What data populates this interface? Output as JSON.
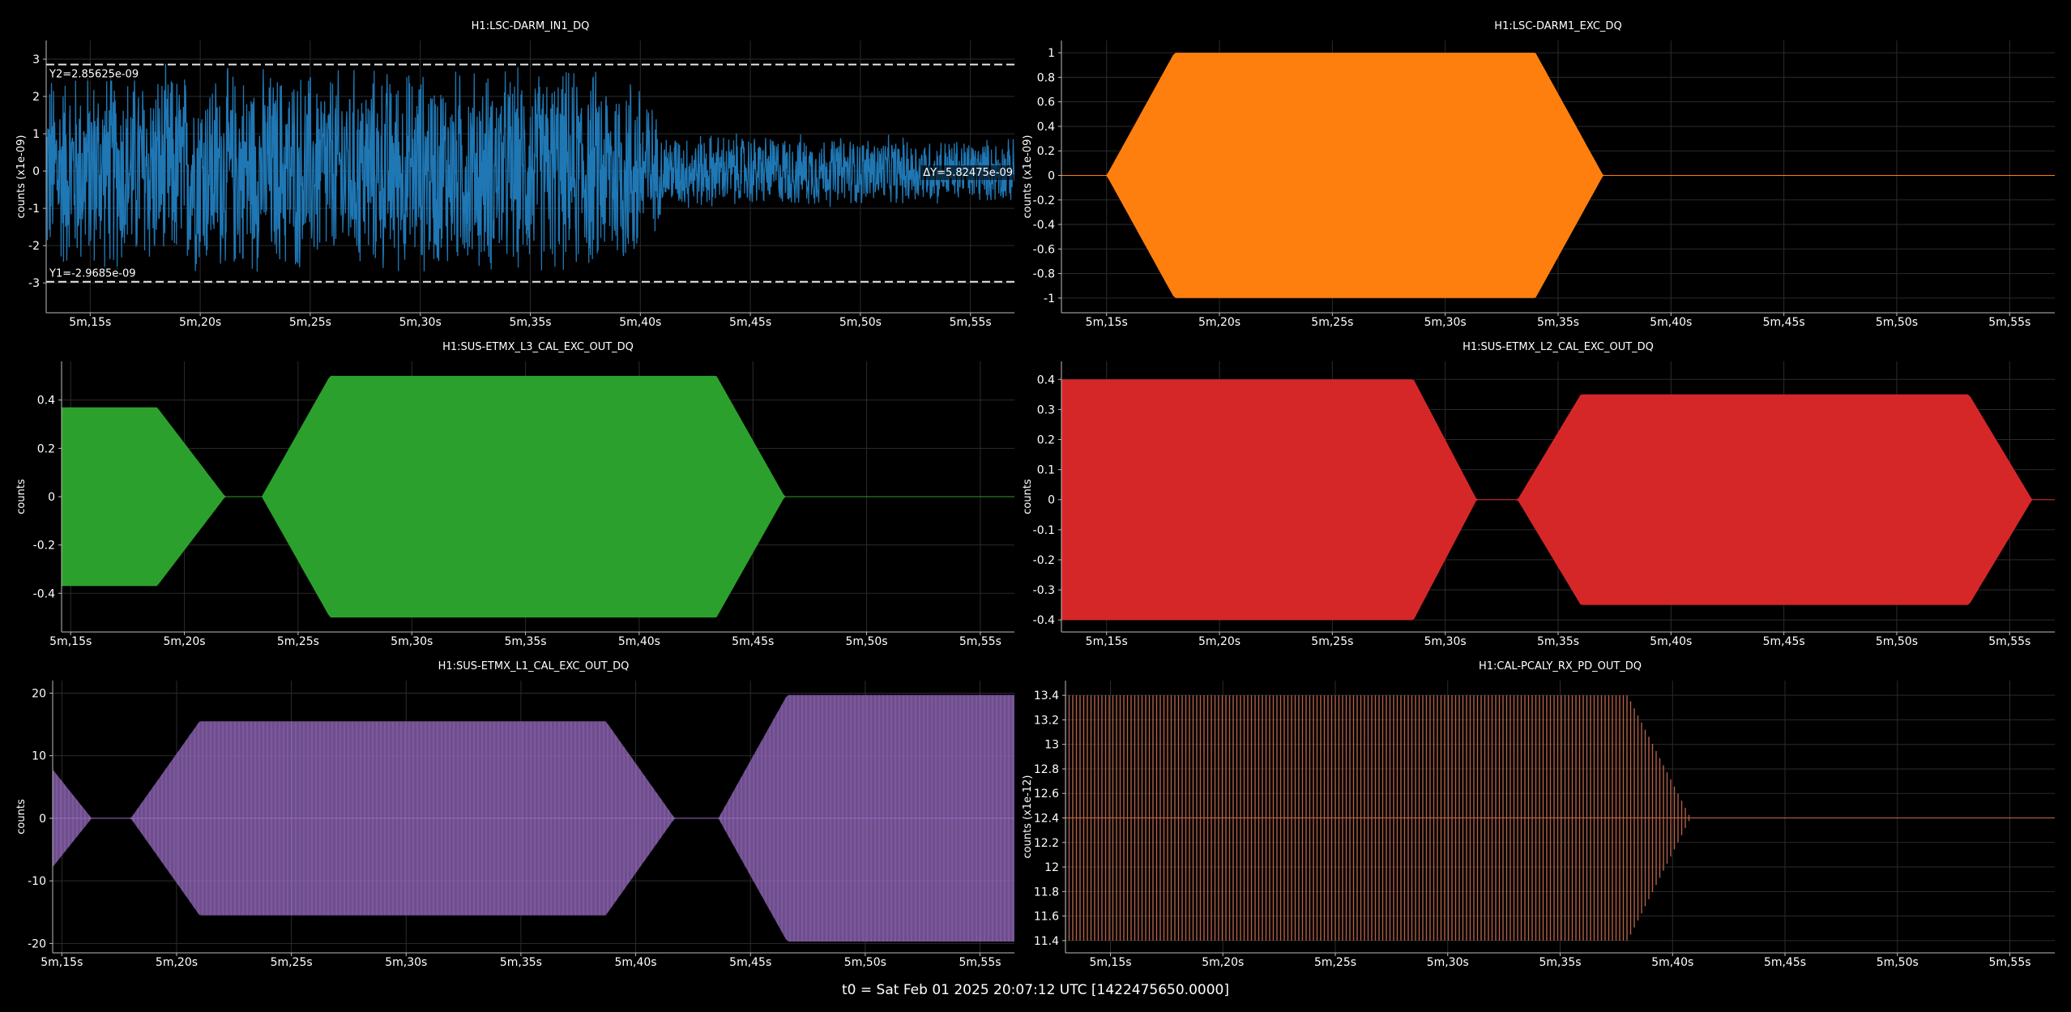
{
  "footer": "t0 = Sat Feb 01 2025 20:07:12 UTC [1422475650.0000]",
  "chart_data": [
    {
      "type": "line",
      "title": "H1:LSC-DARM_IN1_DQ",
      "ylabel": "counts (x1e-09)",
      "color": "#1f77b4",
      "xlim": [
        313,
        357
      ],
      "ylim": [
        -3.8,
        3.5
      ],
      "xticks": [
        315,
        320,
        325,
        330,
        335,
        340,
        345,
        350,
        355
      ],
      "xtick_labels": [
        "5m,15s",
        "5m,20s",
        "5m,25s",
        "5m,30s",
        "5m,35s",
        "5m,40s",
        "5m,45s",
        "5m,50s",
        "5m,55s"
      ],
      "yticks": [
        -3,
        -2,
        -1,
        0,
        1,
        2,
        3
      ],
      "ytick_labels": [
        "-3",
        "-2",
        "-1",
        "0",
        "1",
        "2",
        "3"
      ],
      "envelope": [
        [
          313,
          2.6
        ],
        [
          340,
          2.6
        ],
        [
          341,
          1.0
        ],
        [
          357,
          0.8
        ]
      ],
      "cursors": [
        {
          "value": 2.85625,
          "label": "Y2=2.85625e-09"
        },
        {
          "value": -2.9685,
          "label": "Y1=-2.9685e-09"
        }
      ],
      "delta_label": "ΔY=5.82475e-09"
    },
    {
      "type": "area",
      "title": "H1:LSC-DARM1_EXC_DQ",
      "ylabel": "counts (x1e-09)",
      "color": "#ff7f0e",
      "xlim": [
        313,
        357
      ],
      "ylim": [
        -1.12,
        1.1
      ],
      "xticks": [
        315,
        320,
        325,
        330,
        335,
        340,
        345,
        350,
        355
      ],
      "xtick_labels": [
        "5m,15s",
        "5m,20s",
        "5m,25s",
        "5m,30s",
        "5m,35s",
        "5m,40s",
        "5m,45s",
        "5m,50s",
        "5m,55s"
      ],
      "yticks": [
        -1,
        -0.8,
        -0.6,
        -0.4,
        -0.2,
        0,
        0.2,
        0.4,
        0.6,
        0.8,
        1
      ],
      "ytick_labels": [
        "-1",
        "-0.8",
        "-0.6",
        "-0.4",
        "-0.2",
        "0",
        "0.2",
        "0.4",
        "0.6",
        "0.8",
        "1"
      ],
      "envelope": [
        [
          313,
          0
        ],
        [
          315,
          0
        ],
        [
          318,
          1
        ],
        [
          334,
          1
        ],
        [
          337,
          0
        ],
        [
          357,
          0
        ]
      ]
    },
    {
      "type": "area",
      "title": "H1:SUS-ETMX_L3_CAL_EXC_OUT_DQ",
      "ylabel": "counts",
      "color": "#2ca02c",
      "xlim": [
        314.6,
        356.5
      ],
      "ylim": [
        -0.56,
        0.56
      ],
      "xticks": [
        315,
        320,
        325,
        330,
        335,
        340,
        345,
        350,
        355
      ],
      "xtick_labels": [
        "5m,15s",
        "5m,20s",
        "5m,25s",
        "5m,30s",
        "5m,35s",
        "5m,40s",
        "5m,45s",
        "5m,50s",
        "5m,55s"
      ],
      "yticks": [
        -0.4,
        -0.2,
        0,
        0.2,
        0.4
      ],
      "ytick_labels": [
        "-0.4",
        "-0.2",
        "0",
        "0.2",
        "0.4"
      ],
      "envelope": [
        [
          314.6,
          0.37
        ],
        [
          318.8,
          0.37
        ],
        [
          321.8,
          0
        ],
        [
          323.4,
          0
        ],
        [
          326.4,
          0.5
        ],
        [
          343.4,
          0.5
        ],
        [
          346.4,
          0
        ],
        [
          356.5,
          0
        ]
      ]
    },
    {
      "type": "area",
      "title": "H1:SUS-ETMX_L2_CAL_EXC_OUT_DQ",
      "ylabel": "counts",
      "color": "#d62728",
      "xlim": [
        313,
        357
      ],
      "ylim": [
        -0.44,
        0.46
      ],
      "xticks": [
        315,
        320,
        325,
        330,
        335,
        340,
        345,
        350,
        355
      ],
      "xtick_labels": [
        "5m,15s",
        "5m,20s",
        "5m,25s",
        "5m,30s",
        "5m,35s",
        "5m,40s",
        "5m,45s",
        "5m,50s",
        "5m,55s"
      ],
      "yticks": [
        -0.4,
        -0.3,
        -0.2,
        -0.1,
        0,
        0.1,
        0.2,
        0.3,
        0.4
      ],
      "ytick_labels": [
        "-0.4",
        "-0.3",
        "-0.2",
        "-0.1",
        "0",
        "0.1",
        "0.2",
        "0.3",
        "0.4"
      ],
      "envelope": [
        [
          313,
          0.4
        ],
        [
          328.6,
          0.4
        ],
        [
          331.4,
          0
        ],
        [
          333.2,
          0
        ],
        [
          336.0,
          0.35
        ],
        [
          353.2,
          0.35
        ],
        [
          356.0,
          0
        ],
        [
          357,
          0
        ]
      ]
    },
    {
      "type": "area",
      "title": "H1:SUS-ETMX_L1_CAL_EXC_OUT_DQ",
      "ylabel": "counts",
      "color": "#9467bd",
      "xlim": [
        314.6,
        356.5
      ],
      "ylim": [
        -21.5,
        22
      ],
      "xticks": [
        315,
        320,
        325,
        330,
        335,
        340,
        345,
        350,
        355
      ],
      "xtick_labels": [
        "5m,15s",
        "5m,20s",
        "5m,25s",
        "5m,30s",
        "5m,35s",
        "5m,40s",
        "5m,45s",
        "5m,50s",
        "5m,55s"
      ],
      "yticks": [
        -20,
        -10,
        0,
        10,
        20
      ],
      "ytick_labels": [
        "-20",
        "-10",
        "0",
        "10",
        "20"
      ],
      "envelope": [
        [
          314.6,
          7.8
        ],
        [
          316.3,
          0
        ],
        [
          318.0,
          0
        ],
        [
          321.0,
          15.5
        ],
        [
          338.7,
          15.5
        ],
        [
          341.7,
          0
        ],
        [
          343.6,
          0
        ],
        [
          346.6,
          19.7
        ],
        [
          356.5,
          19.7
        ]
      ]
    },
    {
      "type": "area",
      "title": "H1:CAL-PCALY_RX_PD_OUT_DQ",
      "ylabel": "counts (x1e-12)",
      "color": "#c46a4e",
      "xlim": [
        313,
        357
      ],
      "ylim": [
        11.3,
        13.52
      ],
      "xticks": [
        315,
        320,
        325,
        330,
        335,
        340,
        345,
        350,
        355
      ],
      "xtick_labels": [
        "5m,15s",
        "5m,20s",
        "5m,25s",
        "5m,30s",
        "5m,35s",
        "5m,40s",
        "5m,45s",
        "5m,50s",
        "5m,55s"
      ],
      "yticks": [
        11.4,
        11.6,
        11.8,
        12,
        12.2,
        12.4,
        12.6,
        12.8,
        13,
        13.2,
        13.4
      ],
      "ytick_labels": [
        "11.4",
        "11.6",
        "11.8",
        "12",
        "12.2",
        "12.4",
        "12.6",
        "12.8",
        "13",
        "13.2",
        "13.4"
      ],
      "center": 12.4,
      "envelope": [
        [
          313,
          1.0
        ],
        [
          338,
          1.0
        ],
        [
          340.8,
          0
        ],
        [
          357,
          0
        ]
      ]
    }
  ]
}
